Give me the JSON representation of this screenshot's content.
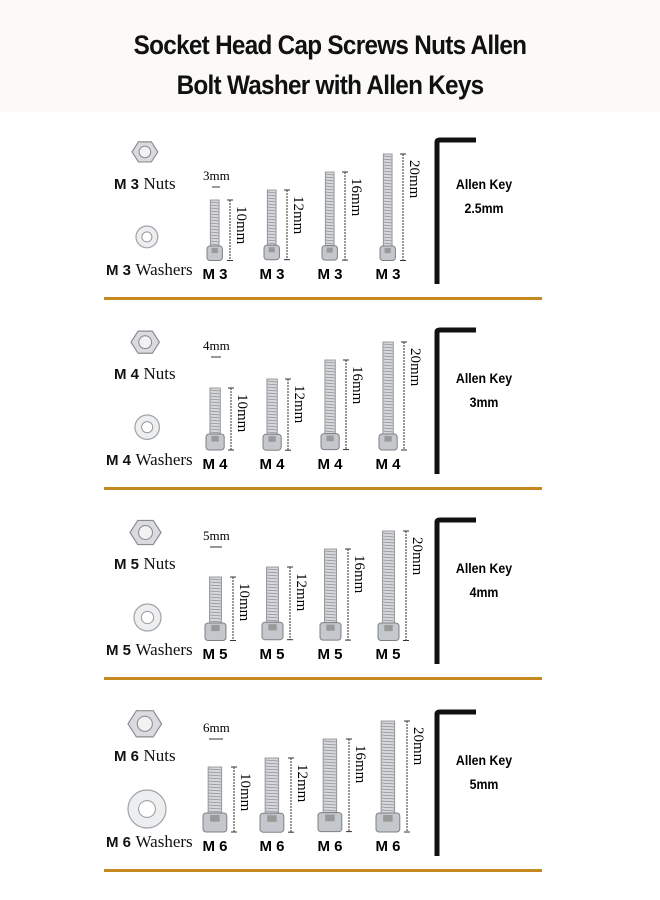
{
  "title": {
    "line1": "Socket Head Cap Screws Nuts Allen",
    "line2": "Bolt Washer with Allen Keys"
  },
  "colors": {
    "separator": "#c48a1f",
    "key": "#111111",
    "metal": "#c9ccd0"
  },
  "sections": [
    {
      "size": "M 3",
      "nuts_label": "Nuts",
      "washers_label": "Washers",
      "diameter_label": "3mm",
      "diameter_mm": 3,
      "screws": [
        {
          "length_label": "10mm",
          "length_mm": 10,
          "size_label": "M 3"
        },
        {
          "length_label": "12mm",
          "length_mm": 12,
          "size_label": "M 3"
        },
        {
          "length_label": "16mm",
          "length_mm": 16,
          "size_label": "M 3"
        },
        {
          "length_label": "20mm",
          "length_mm": 20,
          "size_label": "M 3"
        }
      ],
      "key_label": "Allen Key",
      "key_size": "2.5mm"
    },
    {
      "size": "M 4",
      "nuts_label": "Nuts",
      "washers_label": "Washers",
      "diameter_label": "4mm",
      "diameter_mm": 4,
      "screws": [
        {
          "length_label": "10mm",
          "length_mm": 10,
          "size_label": "M 4"
        },
        {
          "length_label": "12mm",
          "length_mm": 12,
          "size_label": "M 4"
        },
        {
          "length_label": "16mm",
          "length_mm": 16,
          "size_label": "M 4"
        },
        {
          "length_label": "20mm",
          "length_mm": 20,
          "size_label": "M 4"
        }
      ],
      "key_label": "Allen Key",
      "key_size": "3mm"
    },
    {
      "size": "M 5",
      "nuts_label": "Nuts",
      "washers_label": "Washers",
      "diameter_label": "5mm",
      "diameter_mm": 5,
      "screws": [
        {
          "length_label": "10mm",
          "length_mm": 10,
          "size_label": "M 5"
        },
        {
          "length_label": "12mm",
          "length_mm": 12,
          "size_label": "M 5"
        },
        {
          "length_label": "16mm",
          "length_mm": 16,
          "size_label": "M 5"
        },
        {
          "length_label": "20mm",
          "length_mm": 20,
          "size_label": "M 5"
        }
      ],
      "key_label": "Allen Key",
      "key_size": "4mm"
    },
    {
      "size": "M 6",
      "nuts_label": "Nuts",
      "washers_label": "Washers",
      "diameter_label": "6mm",
      "diameter_mm": 6,
      "screws": [
        {
          "length_label": "10mm",
          "length_mm": 10,
          "size_label": "M 6"
        },
        {
          "length_label": "12mm",
          "length_mm": 12,
          "size_label": "M 6"
        },
        {
          "length_label": "16mm",
          "length_mm": 16,
          "size_label": "M 6"
        },
        {
          "length_label": "20mm",
          "length_mm": 20,
          "size_label": "M 6"
        }
      ],
      "key_label": "Allen Key",
      "key_size": "5mm"
    }
  ]
}
